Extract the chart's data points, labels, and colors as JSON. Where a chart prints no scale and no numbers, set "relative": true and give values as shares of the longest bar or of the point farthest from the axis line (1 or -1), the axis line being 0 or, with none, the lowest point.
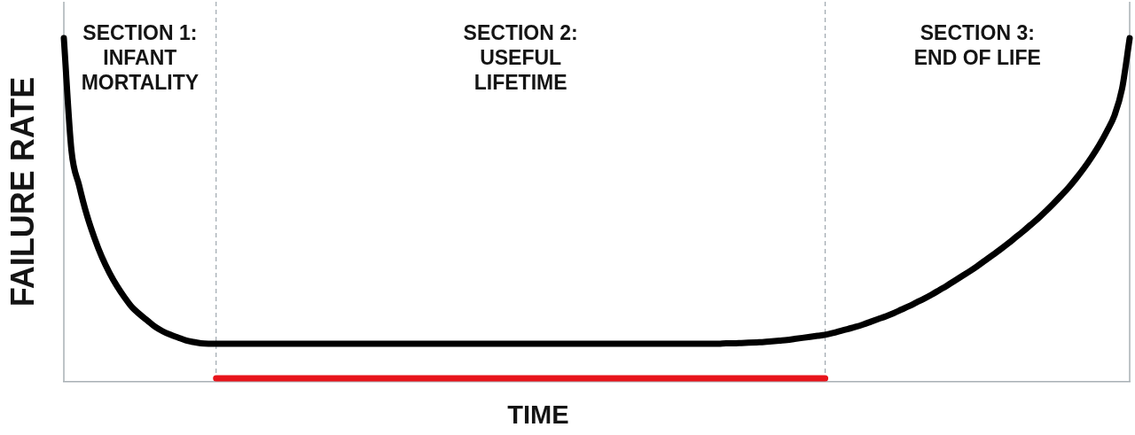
{
  "chart_data": {
    "type": "line",
    "xlabel": "TIME",
    "ylabel": "FAILURE RATE",
    "annotations": [
      "SECTION 1:\nINFANT\nMORTALITY",
      "SECTION 2:\nUSEFUL\nLIFETIME",
      "SECTION 3:\nEND OF LIFE"
    ],
    "relative": true,
    "categories": [
      null,
      null,
      null,
      null,
      null,
      null,
      null,
      null,
      null,
      null,
      null,
      null,
      null,
      null,
      null,
      null,
      null,
      null,
      null,
      null,
      null,
      null,
      null,
      null,
      null,
      null,
      null,
      null,
      null,
      null,
      null,
      null,
      null,
      null,
      null,
      null,
      null,
      null,
      null,
      null,
      null,
      null,
      null,
      null,
      null,
      null,
      null,
      null,
      null,
      null,
      null,
      null,
      null,
      null,
      null,
      null,
      null,
      null,
      null,
      null,
      null,
      null,
      null,
      null,
      null,
      null,
      null,
      null,
      null,
      null,
      null,
      null,
      null,
      null,
      null,
      null,
      null,
      null,
      null,
      null,
      null,
      null,
      null,
      null,
      null,
      null,
      null,
      null,
      null,
      null,
      null,
      null,
      null,
      null,
      null,
      null,
      null,
      null,
      null,
      null,
      null,
      null,
      null,
      null,
      null,
      null,
      null,
      null,
      null,
      null,
      null,
      null,
      null,
      null,
      null,
      null,
      null,
      null,
      null,
      null,
      null,
      null,
      null,
      null,
      null,
      null,
      null,
      null,
      null,
      null,
      null,
      null,
      null,
      null,
      null,
      null,
      null,
      null,
      null,
      null,
      null
    ],
    "series": [
      {
        "color": "#000000",
        "values": [
          1,
          0.673,
          0.572,
          0.487,
          0.42,
          0.363,
          0.317,
          0.278,
          0.245,
          0.216,
          0.196,
          0.178,
          0.16,
          0.147,
          0.137,
          0.129,
          0.121,
          0.116,
          0.112,
          0.111,
          0.111,
          0.111,
          0.111,
          0.111,
          0.111,
          0.111,
          0.111,
          0.111,
          0.111,
          0.111,
          0.111,
          0.111,
          0.111,
          0.111,
          0.111,
          0.111,
          0.111,
          0.111,
          0.111,
          0.111,
          0.111,
          0.111,
          0.111,
          0.111,
          0.111,
          0.111,
          0.111,
          0.111,
          0.111,
          0.111,
          0.111,
          0.111,
          0.111,
          0.111,
          0.111,
          0.111,
          0.111,
          0.111,
          0.111,
          0.111,
          0.111,
          0.111,
          0.111,
          0.111,
          0.111,
          0.111,
          0.111,
          0.111,
          0.111,
          0.111,
          0.111,
          0.111,
          0.111,
          0.111,
          0.111,
          0.111,
          0.111,
          0.111,
          0.111,
          0.111,
          0.111,
          0.111,
          0.111,
          0.111,
          0.111,
          0.111,
          0.111,
          0.112,
          0.112,
          0.113,
          0.114,
          0.115,
          0.116,
          0.118,
          0.12,
          0.122,
          0.125,
          0.128,
          0.131,
          0.134,
          0.137,
          0.142,
          0.148,
          0.154,
          0.16,
          0.167,
          0.175,
          0.183,
          0.191,
          0.2,
          0.21,
          0.22,
          0.231,
          0.242,
          0.254,
          0.267,
          0.28,
          0.294,
          0.308,
          0.322,
          0.337,
          0.353,
          0.369,
          0.385,
          0.402,
          0.42,
          0.438,
          0.457,
          0.476,
          0.497,
          0.519,
          0.542,
          0.566,
          0.593,
          0.622,
          0.654,
          0.689,
          0.729,
          0.775,
          0.853,
          1
        ]
      },
      {
        "color": "#e8141b",
        "values": [
          null,
          null,
          null,
          null,
          null,
          null,
          null,
          null,
          null,
          null,
          null,
          null,
          null,
          null,
          null,
          null,
          null,
          null,
          null,
          null,
          0.01,
          0.01,
          0.01,
          0.01,
          0.01,
          0.01,
          0.01,
          0.01,
          0.01,
          0.01,
          0.01,
          0.01,
          0.01,
          0.01,
          0.01,
          0.01,
          0.01,
          0.01,
          0.01,
          0.01,
          0.01,
          0.01,
          0.01,
          0.01,
          0.01,
          0.01,
          0.01,
          0.01,
          0.01,
          0.01,
          0.01,
          0.01,
          0.01,
          0.01,
          0.01,
          0.01,
          0.01,
          0.01,
          0.01,
          0.01,
          0.01,
          0.01,
          0.01,
          0.01,
          0.01,
          0.01,
          0.01,
          0.01,
          0.01,
          0.01,
          0.01,
          0.01,
          0.01,
          0.01,
          0.01,
          0.01,
          0.01,
          0.01,
          0.01,
          0.01,
          0.01,
          0.01,
          0.01,
          0.01,
          0.01,
          0.01,
          0.01,
          0.01,
          0.01,
          0.01,
          0.01,
          0.01,
          0.01,
          0.01,
          0.01,
          0.01,
          0.01,
          0.01,
          0.01,
          0.01,
          0.01,
          null,
          null,
          null,
          null,
          null,
          null,
          null,
          null,
          null,
          null,
          null,
          null,
          null,
          null,
          null,
          null,
          null,
          null,
          null,
          null,
          null,
          null,
          null,
          null,
          null,
          null,
          null,
          null,
          null,
          null,
          null,
          null,
          null,
          null,
          null,
          null,
          null,
          null,
          null,
          null
        ]
      }
    ],
    "legend": false,
    "grid": false,
    "tick_labels": false,
    "marker": "none"
  }
}
